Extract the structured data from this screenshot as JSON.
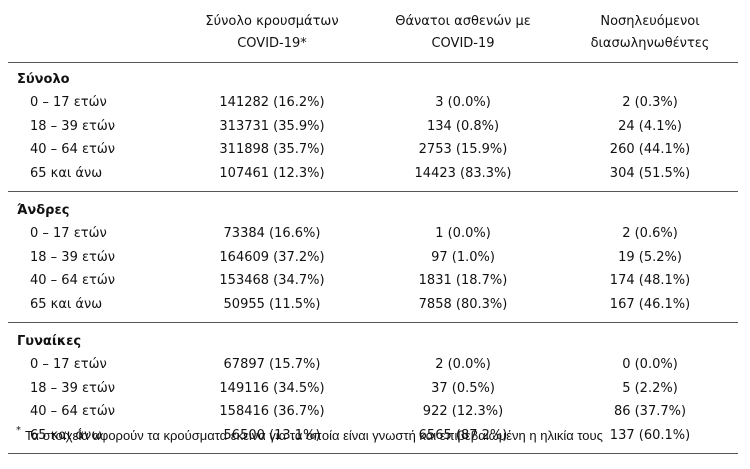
{
  "table": {
    "columns": [
      [
        "Σύνολο κρουσμάτων",
        "COVID-19*"
      ],
      [
        "Θάνατοι ασθενών με",
        "COVID-19"
      ],
      [
        "Νοσηλευόμενοι",
        "διασωληνωθέντες"
      ]
    ],
    "groups": [
      {
        "title": "Σύνολο",
        "rows": [
          [
            "0 – 17 ετών",
            "141282 (16.2%)",
            "3 (0.0%)",
            "2 (0.3%)"
          ],
          [
            "18 – 39 ετών",
            "313731 (35.9%)",
            "134 (0.8%)",
            "24 (4.1%)"
          ],
          [
            "40 – 64 ετών",
            "311898 (35.7%)",
            "2753 (15.9%)",
            "260 (44.1%)"
          ],
          [
            "65 και άνω",
            "107461 (12.3%)",
            "14423 (83.3%)",
            "304 (51.5%)"
          ]
        ]
      },
      {
        "title": "Άνδρες",
        "rows": [
          [
            "0 – 17 ετών",
            "73384 (16.6%)",
            "1 (0.0%)",
            "2 (0.6%)"
          ],
          [
            "18 – 39 ετών",
            "164609 (37.2%)",
            "97 (1.0%)",
            "19 (5.2%)"
          ],
          [
            "40 – 64 ετών",
            "153468 (34.7%)",
            "1831 (18.7%)",
            "174 (48.1%)"
          ],
          [
            "65 και άνω",
            "50955 (11.5%)",
            "7858 (80.3%)",
            "167 (46.1%)"
          ]
        ]
      },
      {
        "title": "Γυναίκες",
        "rows": [
          [
            "0 – 17 ετών",
            "67897 (15.7%)",
            "2 (0.0%)",
            "0 (0.0%)"
          ],
          [
            "18 – 39 ετών",
            "149116 (34.5%)",
            "37 (0.5%)",
            "5 (2.2%)"
          ],
          [
            "40 – 64 ετών",
            "158416 (36.7%)",
            "922 (12.3%)",
            "86 (37.7%)"
          ],
          [
            "65 και άνω",
            "56500 (13.1%)",
            "6565 (87.2%)",
            "137 (60.1%)"
          ]
        ]
      }
    ],
    "footnote": {
      "mark": "*",
      "text": "Τα στοιχεία αφορούν τα κρούσματα εκείνα για τα οποία είναι γνωστή και επιβεβαιωμένη η ηλικία τους"
    }
  }
}
